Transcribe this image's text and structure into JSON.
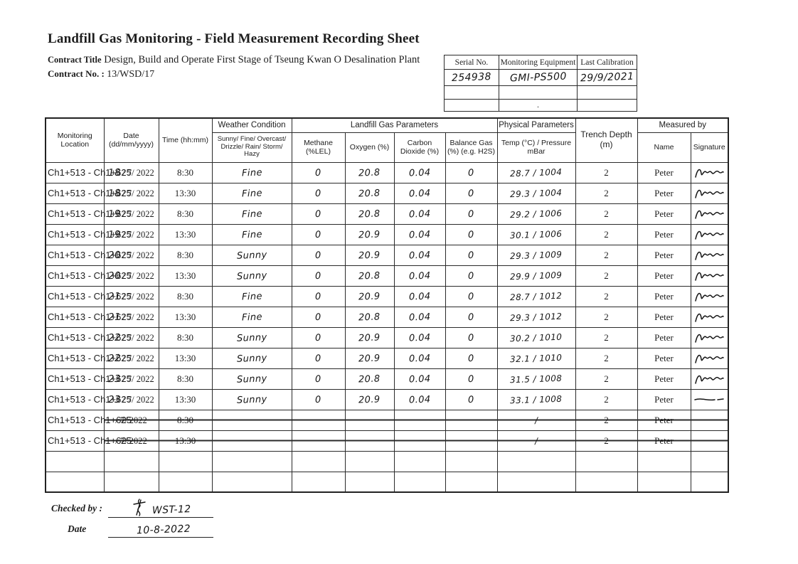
{
  "page": {
    "title": "Landfill Gas Monitoring - Field Measurement Recording Sheet",
    "contract_title_label": "Contract Title",
    "contract_title_value": "Design, Build and Operate First Stage of Tseung Kwan O Desalination Plant",
    "contract_no_label": "Contract No. :",
    "contract_no_value": "13/WSD/17"
  },
  "equipment_table": {
    "headers": [
      "Serial No.",
      "Monitoring Equipment",
      "Last Calibration"
    ],
    "values": [
      "254938",
      "GMI-PS500",
      "29/9/2021"
    ],
    "blank_row_dot": "."
  },
  "main_table": {
    "headers": {
      "monitoring_location": "Monitoring Location",
      "date": "Date (dd/mm/yyyy)",
      "time": "Time (hh:mm)",
      "weather_group": "Weather Condition",
      "weather_detail": "Sunny/ Fine/ Overcast/ Drizzle/ Rain/ Storm/ Hazy",
      "gas_group": "Landfill Gas Parameters",
      "methane": "Methane (%LEL)",
      "oxygen": "Oxygen (%)",
      "co2": "Carbon Dioxide (%)",
      "balance": "Balance Gas (%) (e.g. H2S)",
      "physical_group": "Physical Parameters",
      "temp_pressure": "Temp (°C) / Pressure mBar",
      "trench": "Trench Depth (m)",
      "measured_group": "Measured by",
      "name": "Name",
      "signature": "Signature"
    },
    "rows": [
      {
        "loc": "Ch1+513 - Ch1+625",
        "day": "18",
        "dmy": "/ 7/ 2022",
        "time": "8:30",
        "weather": "Fine",
        "ch4": "0",
        "o2": "20.8",
        "co2": "0.04",
        "bal": "0",
        "temp_press": "28.7 / 1004",
        "trench": "2",
        "name": "Peter",
        "sig": "scribble",
        "struck": false
      },
      {
        "loc": "Ch1+513 - Ch1+625",
        "day": "18",
        "dmy": "/ 7/ 2022",
        "time": "13:30",
        "weather": "Fine",
        "ch4": "0",
        "o2": "20.8",
        "co2": "0.04",
        "bal": "0",
        "temp_press": "29.3 / 1004",
        "trench": "2",
        "name": "Peter",
        "sig": "scribble",
        "struck": false
      },
      {
        "loc": "Ch1+513 - Ch1+625",
        "day": "19",
        "dmy": "/ 7/ 2022",
        "time": "8:30",
        "weather": "Fine",
        "ch4": "0",
        "o2": "20.8",
        "co2": "0.04",
        "bal": "0",
        "temp_press": "29.2 / 1006",
        "trench": "2",
        "name": "Peter",
        "sig": "scribble",
        "struck": false
      },
      {
        "loc": "Ch1+513 - Ch1+625",
        "day": "19",
        "dmy": "/ 7/ 2022",
        "time": "13:30",
        "weather": "Fine",
        "ch4": "0",
        "o2": "20.9",
        "co2": "0.04",
        "bal": "0",
        "temp_press": "30.1 / 1006",
        "trench": "2",
        "name": "Peter",
        "sig": "scribble",
        "struck": false
      },
      {
        "loc": "Ch1+513 - Ch1+625",
        "day": "20",
        "dmy": "/ 7/ 2022",
        "time": "8:30",
        "weather": "Sunny",
        "ch4": "0",
        "o2": "20.9",
        "co2": "0.04",
        "bal": "0",
        "temp_press": "29.3 / 1009",
        "trench": "2",
        "name": "Peter",
        "sig": "scribble",
        "struck": false
      },
      {
        "loc": "Ch1+513 - Ch1+625",
        "day": "20",
        "dmy": "/ 7/ 2022",
        "time": "13:30",
        "weather": "Sunny",
        "ch4": "0",
        "o2": "20.8",
        "co2": "0.04",
        "bal": "0",
        "temp_press": "29.9 / 1009",
        "trench": "2",
        "name": "Peter",
        "sig": "scribble",
        "struck": false
      },
      {
        "loc": "Ch1+513 - Ch1+625",
        "day": "21",
        "dmy": "/ 7/ 2022",
        "time": "8:30",
        "weather": "Fine",
        "ch4": "0",
        "o2": "20.9",
        "co2": "0.04",
        "bal": "0",
        "temp_press": "28.7 / 1012",
        "trench": "2",
        "name": "Peter",
        "sig": "scribble",
        "struck": false
      },
      {
        "loc": "Ch1+513 - Ch1+625",
        "day": "21",
        "dmy": "/ 7/ 2022",
        "time": "13:30",
        "weather": "Fine",
        "ch4": "0",
        "o2": "20.8",
        "co2": "0.04",
        "bal": "0",
        "temp_press": "29.3 / 1012",
        "trench": "2",
        "name": "Peter",
        "sig": "scribble",
        "struck": false
      },
      {
        "loc": "Ch1+513 - Ch1+625",
        "day": "22",
        "dmy": "/ 7/ 2022",
        "time": "8:30",
        "weather": "Sunny",
        "ch4": "0",
        "o2": "20.9",
        "co2": "0.04",
        "bal": "0",
        "temp_press": "30.2 / 1010",
        "trench": "2",
        "name": "Peter",
        "sig": "scribble",
        "struck": false
      },
      {
        "loc": "Ch1+513 - Ch1+625",
        "day": "22",
        "dmy": "/ 7/ 2022",
        "time": "13:30",
        "weather": "Sunny",
        "ch4": "0",
        "o2": "20.9",
        "co2": "0.04",
        "bal": "0",
        "temp_press": "32.1 / 1010",
        "trench": "2",
        "name": "Peter",
        "sig": "scribble",
        "struck": false
      },
      {
        "loc": "Ch1+513 - Ch1+625",
        "day": "23",
        "dmy": "/ 7/ 2022",
        "time": "8:30",
        "weather": "Sunny",
        "ch4": "0",
        "o2": "20.8",
        "co2": "0.04",
        "bal": "0",
        "temp_press": "31.5 / 1008",
        "trench": "2",
        "name": "Peter",
        "sig": "scribble",
        "struck": false
      },
      {
        "loc": "Ch1+513 - Ch1+625",
        "day": "23",
        "dmy": "/ 7/ 2022",
        "time": "13:30",
        "weather": "Sunny",
        "ch4": "0",
        "o2": "20.9",
        "co2": "0.04",
        "bal": "0",
        "temp_press": "33.1 / 1008",
        "trench": "2",
        "name": "Peter",
        "sig": "dash",
        "struck": false
      },
      {
        "loc": "Ch1+513 - Ch1+625",
        "day": "",
        "dmy": "/ 7/ 2022",
        "time": "8:30",
        "weather": "",
        "ch4": "",
        "o2": "",
        "co2": "",
        "bal": "",
        "temp_press": "/",
        "trench": "2",
        "name": "Peter",
        "sig": "",
        "struck": true
      },
      {
        "loc": "Ch1+513 - Ch1+625",
        "day": "",
        "dmy": "/ 7/ 2022",
        "time": "13:30",
        "weather": "",
        "ch4": "",
        "o2": "",
        "co2": "",
        "bal": "",
        "temp_press": "/",
        "trench": "2",
        "name": "Peter",
        "sig": "",
        "struck": true
      },
      {
        "loc": "",
        "day": "",
        "dmy": "",
        "time": "",
        "weather": "",
        "ch4": "",
        "o2": "",
        "co2": "",
        "bal": "",
        "temp_press": "",
        "trench": "",
        "name": "",
        "sig": "",
        "struck": false
      },
      {
        "loc": "",
        "day": "",
        "dmy": "",
        "time": "",
        "weather": "",
        "ch4": "",
        "o2": "",
        "co2": "",
        "bal": "",
        "temp_press": "",
        "trench": "",
        "name": "",
        "sig": "",
        "struck": false
      }
    ]
  },
  "footer": {
    "checked_by_label": "Checked by :",
    "checked_by_value": "WST-12",
    "date_label": "Date",
    "date_value": "10-8-2022"
  }
}
